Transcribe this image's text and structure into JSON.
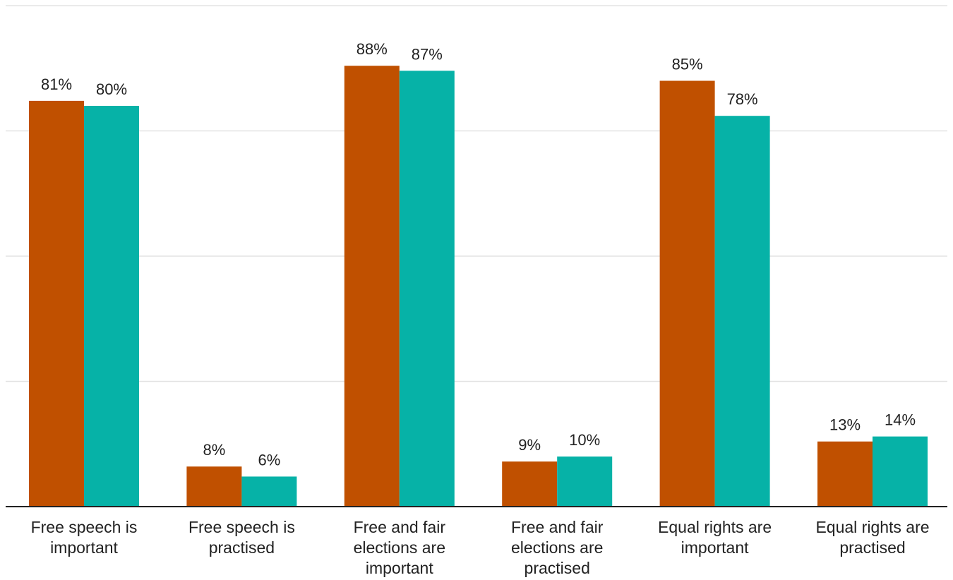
{
  "chart_data": {
    "type": "bar",
    "categories": [
      "Free speech is important",
      "Free speech is practised",
      "Free and fair elections are important",
      "Free and fair elections are practised",
      "Equal rights are important",
      "Equal rights are practised"
    ],
    "category_lines": [
      [
        "Free speech is",
        "important"
      ],
      [
        "Free speech is",
        "practised"
      ],
      [
        "Free and fair",
        "elections are",
        "important"
      ],
      [
        "Free and fair",
        "elections are",
        "practised"
      ],
      [
        "Equal rights are",
        "important"
      ],
      [
        "Equal rights are",
        "practised"
      ]
    ],
    "series": [
      {
        "color": "#c05000",
        "values": [
          81,
          8,
          88,
          9,
          85,
          13
        ],
        "labels": [
          "81%",
          "8%",
          "88%",
          "9%",
          "85%",
          "13%"
        ]
      },
      {
        "color": "#06b2a7",
        "values": [
          80,
          6,
          87,
          10,
          78,
          14
        ],
        "labels": [
          "80%",
          "6%",
          "87%",
          "10%",
          "78%",
          "14%"
        ]
      }
    ],
    "ylim": [
      0,
      100
    ],
    "y_gridlines": [
      25,
      50,
      75,
      100
    ],
    "grid": true,
    "title": "",
    "xlabel": "",
    "ylabel": "",
    "legend": "none"
  }
}
